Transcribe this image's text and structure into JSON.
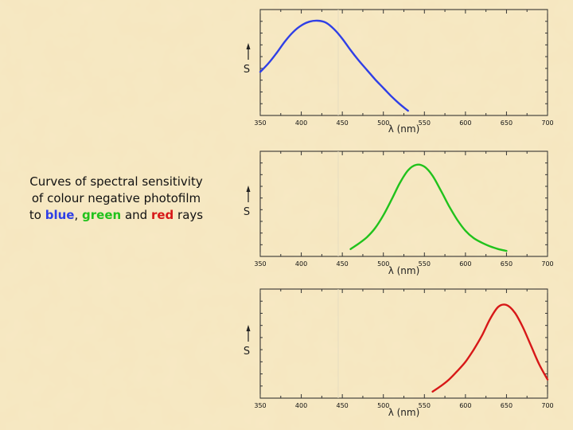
{
  "caption": {
    "line1": "Curves of spectral sensitivity",
    "line2": "of colour negative photofilm",
    "line3_prefix": "to ",
    "word_blue": "blue",
    "sep1": ", ",
    "word_green": "green",
    "sep2": " and ",
    "word_red": "red",
    "suffix": " rays"
  },
  "colors": {
    "background": "#f7e9c4",
    "blue": "#2f3fe6",
    "green": "#21c21c",
    "red": "#d71818"
  },
  "chart_data": [
    {
      "type": "line",
      "title": "",
      "xlabel": "λ (nm)",
      "ylabel": "S",
      "xlim": [
        350,
        700
      ],
      "ylim": [
        0,
        1
      ],
      "ticks": [
        350,
        400,
        450,
        500,
        550,
        600,
        650,
        700
      ],
      "tick_labels": [
        "350",
        "400",
        "450",
        "500",
        "550",
        "600",
        "650",
        "700"
      ],
      "series": [
        {
          "name": "blue",
          "color": "#2f3fe6",
          "x": [
            350,
            360,
            370,
            380,
            390,
            400,
            410,
            420,
            430,
            440,
            450,
            460,
            470,
            480,
            490,
            500,
            510,
            520,
            530
          ],
          "values": [
            0.46,
            0.55,
            0.66,
            0.78,
            0.88,
            0.95,
            0.99,
            1.0,
            0.98,
            0.91,
            0.81,
            0.69,
            0.58,
            0.48,
            0.38,
            0.29,
            0.2,
            0.12,
            0.05
          ]
        }
      ]
    },
    {
      "type": "line",
      "title": "",
      "xlabel": "λ (nm)",
      "ylabel": "S",
      "xlim": [
        350,
        700
      ],
      "ylim": [
        0,
        1
      ],
      "ticks": [
        350,
        400,
        450,
        500,
        550,
        600,
        650,
        700
      ],
      "tick_labels": [
        "350",
        "400",
        "450",
        "500",
        "550",
        "600",
        "650",
        "700"
      ],
      "series": [
        {
          "name": "green",
          "color": "#21c21c",
          "x": [
            460,
            470,
            480,
            490,
            500,
            510,
            520,
            530,
            540,
            550,
            560,
            570,
            580,
            590,
            600,
            610,
            620,
            630,
            640,
            650
          ],
          "values": [
            0.08,
            0.14,
            0.21,
            0.31,
            0.45,
            0.62,
            0.8,
            0.94,
            1.0,
            0.98,
            0.88,
            0.72,
            0.55,
            0.4,
            0.28,
            0.2,
            0.15,
            0.11,
            0.08,
            0.06
          ]
        }
      ]
    },
    {
      "type": "line",
      "title": "",
      "xlabel": "λ (nm)",
      "ylabel": "S",
      "xlim": [
        350,
        700
      ],
      "ylim": [
        0,
        1
      ],
      "ticks": [
        350,
        400,
        450,
        500,
        550,
        600,
        650,
        700
      ],
      "tick_labels": [
        "350",
        "400",
        "450",
        "500",
        "550",
        "600",
        "650",
        "700"
      ],
      "series": [
        {
          "name": "red",
          "color": "#d71818",
          "x": [
            560,
            570,
            580,
            590,
            600,
            610,
            620,
            630,
            640,
            650,
            660,
            670,
            680,
            690,
            700
          ],
          "values": [
            0.07,
            0.13,
            0.2,
            0.29,
            0.39,
            0.52,
            0.67,
            0.85,
            0.98,
            1.0,
            0.92,
            0.76,
            0.56,
            0.36,
            0.2
          ]
        }
      ]
    }
  ]
}
